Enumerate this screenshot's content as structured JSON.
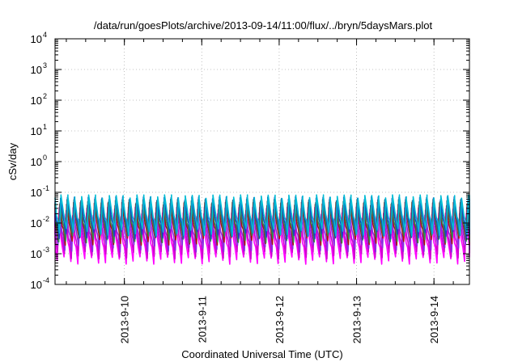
{
  "chart_data": {
    "type": "line",
    "title": "/data/run/goesPlots/archive/2013-09-14/11:00/flux/../bryn/5daysMars.plot",
    "xlabel": "Coordinated Universal Time (UTC)",
    "ylabel": "cSv/day",
    "y_scale": "log",
    "ylim": [
      0.0001,
      10000
    ],
    "y_ticks": [
      {
        "base": "10",
        "exp": "4"
      },
      {
        "base": "10",
        "exp": "3"
      },
      {
        "base": "10",
        "exp": "2"
      },
      {
        "base": "10",
        "exp": "1"
      },
      {
        "base": "10",
        "exp": "0"
      },
      {
        "base": "10",
        "exp": "-1"
      },
      {
        "base": "10",
        "exp": "-2"
      },
      {
        "base": "10",
        "exp": "-3"
      },
      {
        "base": "10",
        "exp": "-4"
      }
    ],
    "xlim": [
      "2013-09-09T02:30",
      "2013-09-14T11:00"
    ],
    "x_ticks": [
      "2013-9-10",
      "2013-9-11",
      "2013-9-12",
      "2013-9-13",
      "2013-9-14"
    ],
    "x_tick_dates": [
      "2013-09-10",
      "2013-09-11",
      "2013-09-12",
      "2013-09-13",
      "2013-09-14"
    ],
    "grid": true,
    "legend": "none",
    "pattern_note_free": true,
    "series": [
      {
        "color": "#ff00ff",
        "min": 0.0006,
        "max": 0.012
      },
      {
        "color": "#d000d0",
        "min": 0.0009,
        "max": 0.018
      },
      {
        "color": "#8a2be2",
        "min": 0.0015,
        "max": 0.028
      },
      {
        "color": "#aa1111",
        "min": 0.0025,
        "max": 0.04
      },
      {
        "color": "#2e8b57",
        "min": 0.003,
        "max": 0.05
      },
      {
        "color": "#1f3fbf",
        "min": 0.004,
        "max": 0.06
      },
      {
        "color": "#00bcd4",
        "min": 0.005,
        "max": 0.07
      }
    ]
  }
}
